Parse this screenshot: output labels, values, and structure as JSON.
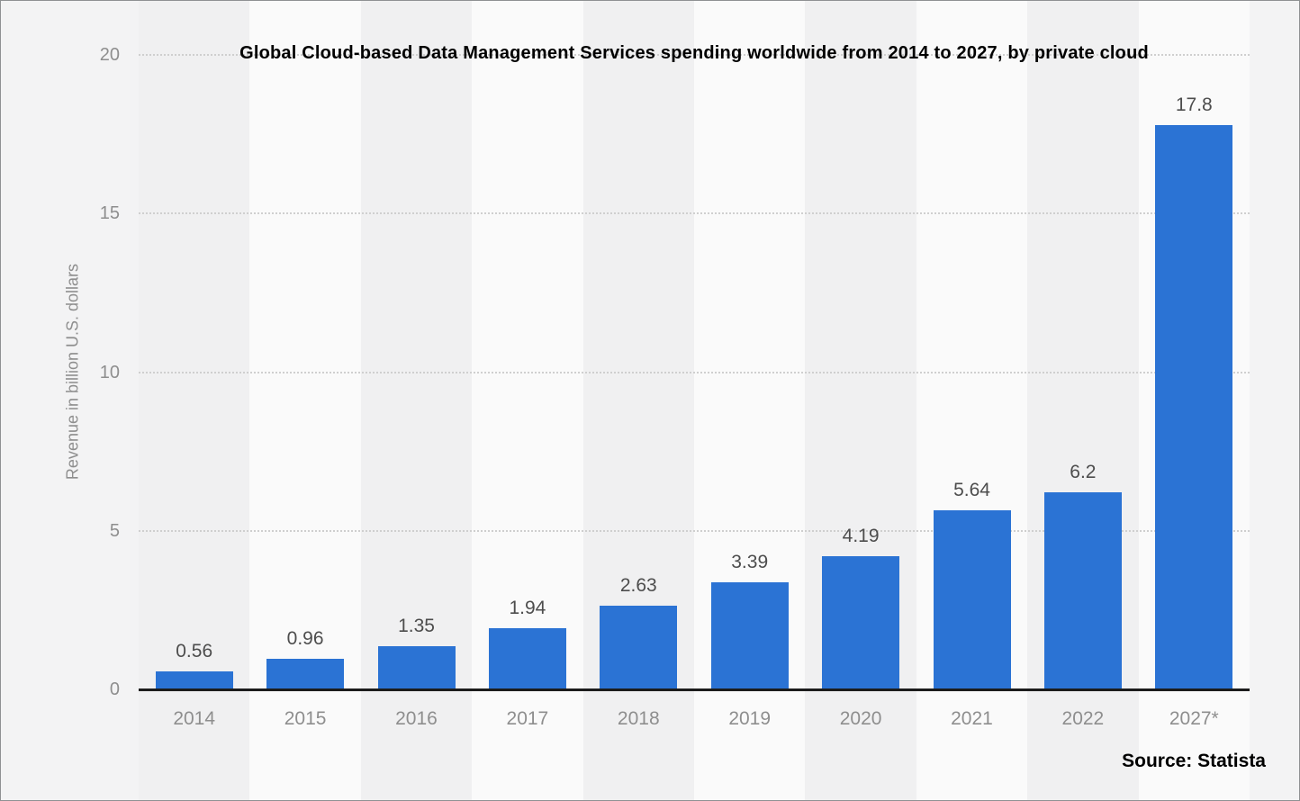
{
  "chart_data": {
    "type": "bar",
    "title": "Global Cloud-based Data Management Services spending worldwide from 2014 to 2027, by private cloud",
    "xlabel": "",
    "ylabel": "Revenue in billion U.S. dollars",
    "categories": [
      "2014",
      "2015",
      "2016",
      "2017",
      "2018",
      "2019",
      "2020",
      "2021",
      "2022",
      "2027*"
    ],
    "values": [
      0.56,
      0.96,
      1.35,
      1.94,
      2.63,
      3.39,
      4.19,
      5.64,
      6.2,
      17.8
    ],
    "value_labels": [
      "0.56",
      "0.96",
      "1.35",
      "1.94",
      "2.63",
      "3.39",
      "4.19",
      "5.64",
      "6.2",
      "17.8"
    ],
    "ylim": [
      0,
      20
    ],
    "yticks": [
      0,
      5,
      10,
      15,
      20
    ],
    "grid": "horizontal dotted",
    "legend": "none",
    "plot_bands": "alternating vertical column bands"
  },
  "source": {
    "label": "Source: Statista"
  },
  "colors": {
    "bar": "#2b73d4",
    "background": "#f3f3f4",
    "band_dark": "#f0f0f1",
    "band_light": "#fafafa",
    "axis_line": "#1c1c1c",
    "gridline": "#cfcfcf",
    "tick_text": "#8e8e8e",
    "value_text": "#4d4d4d",
    "title_text": "#000000"
  }
}
